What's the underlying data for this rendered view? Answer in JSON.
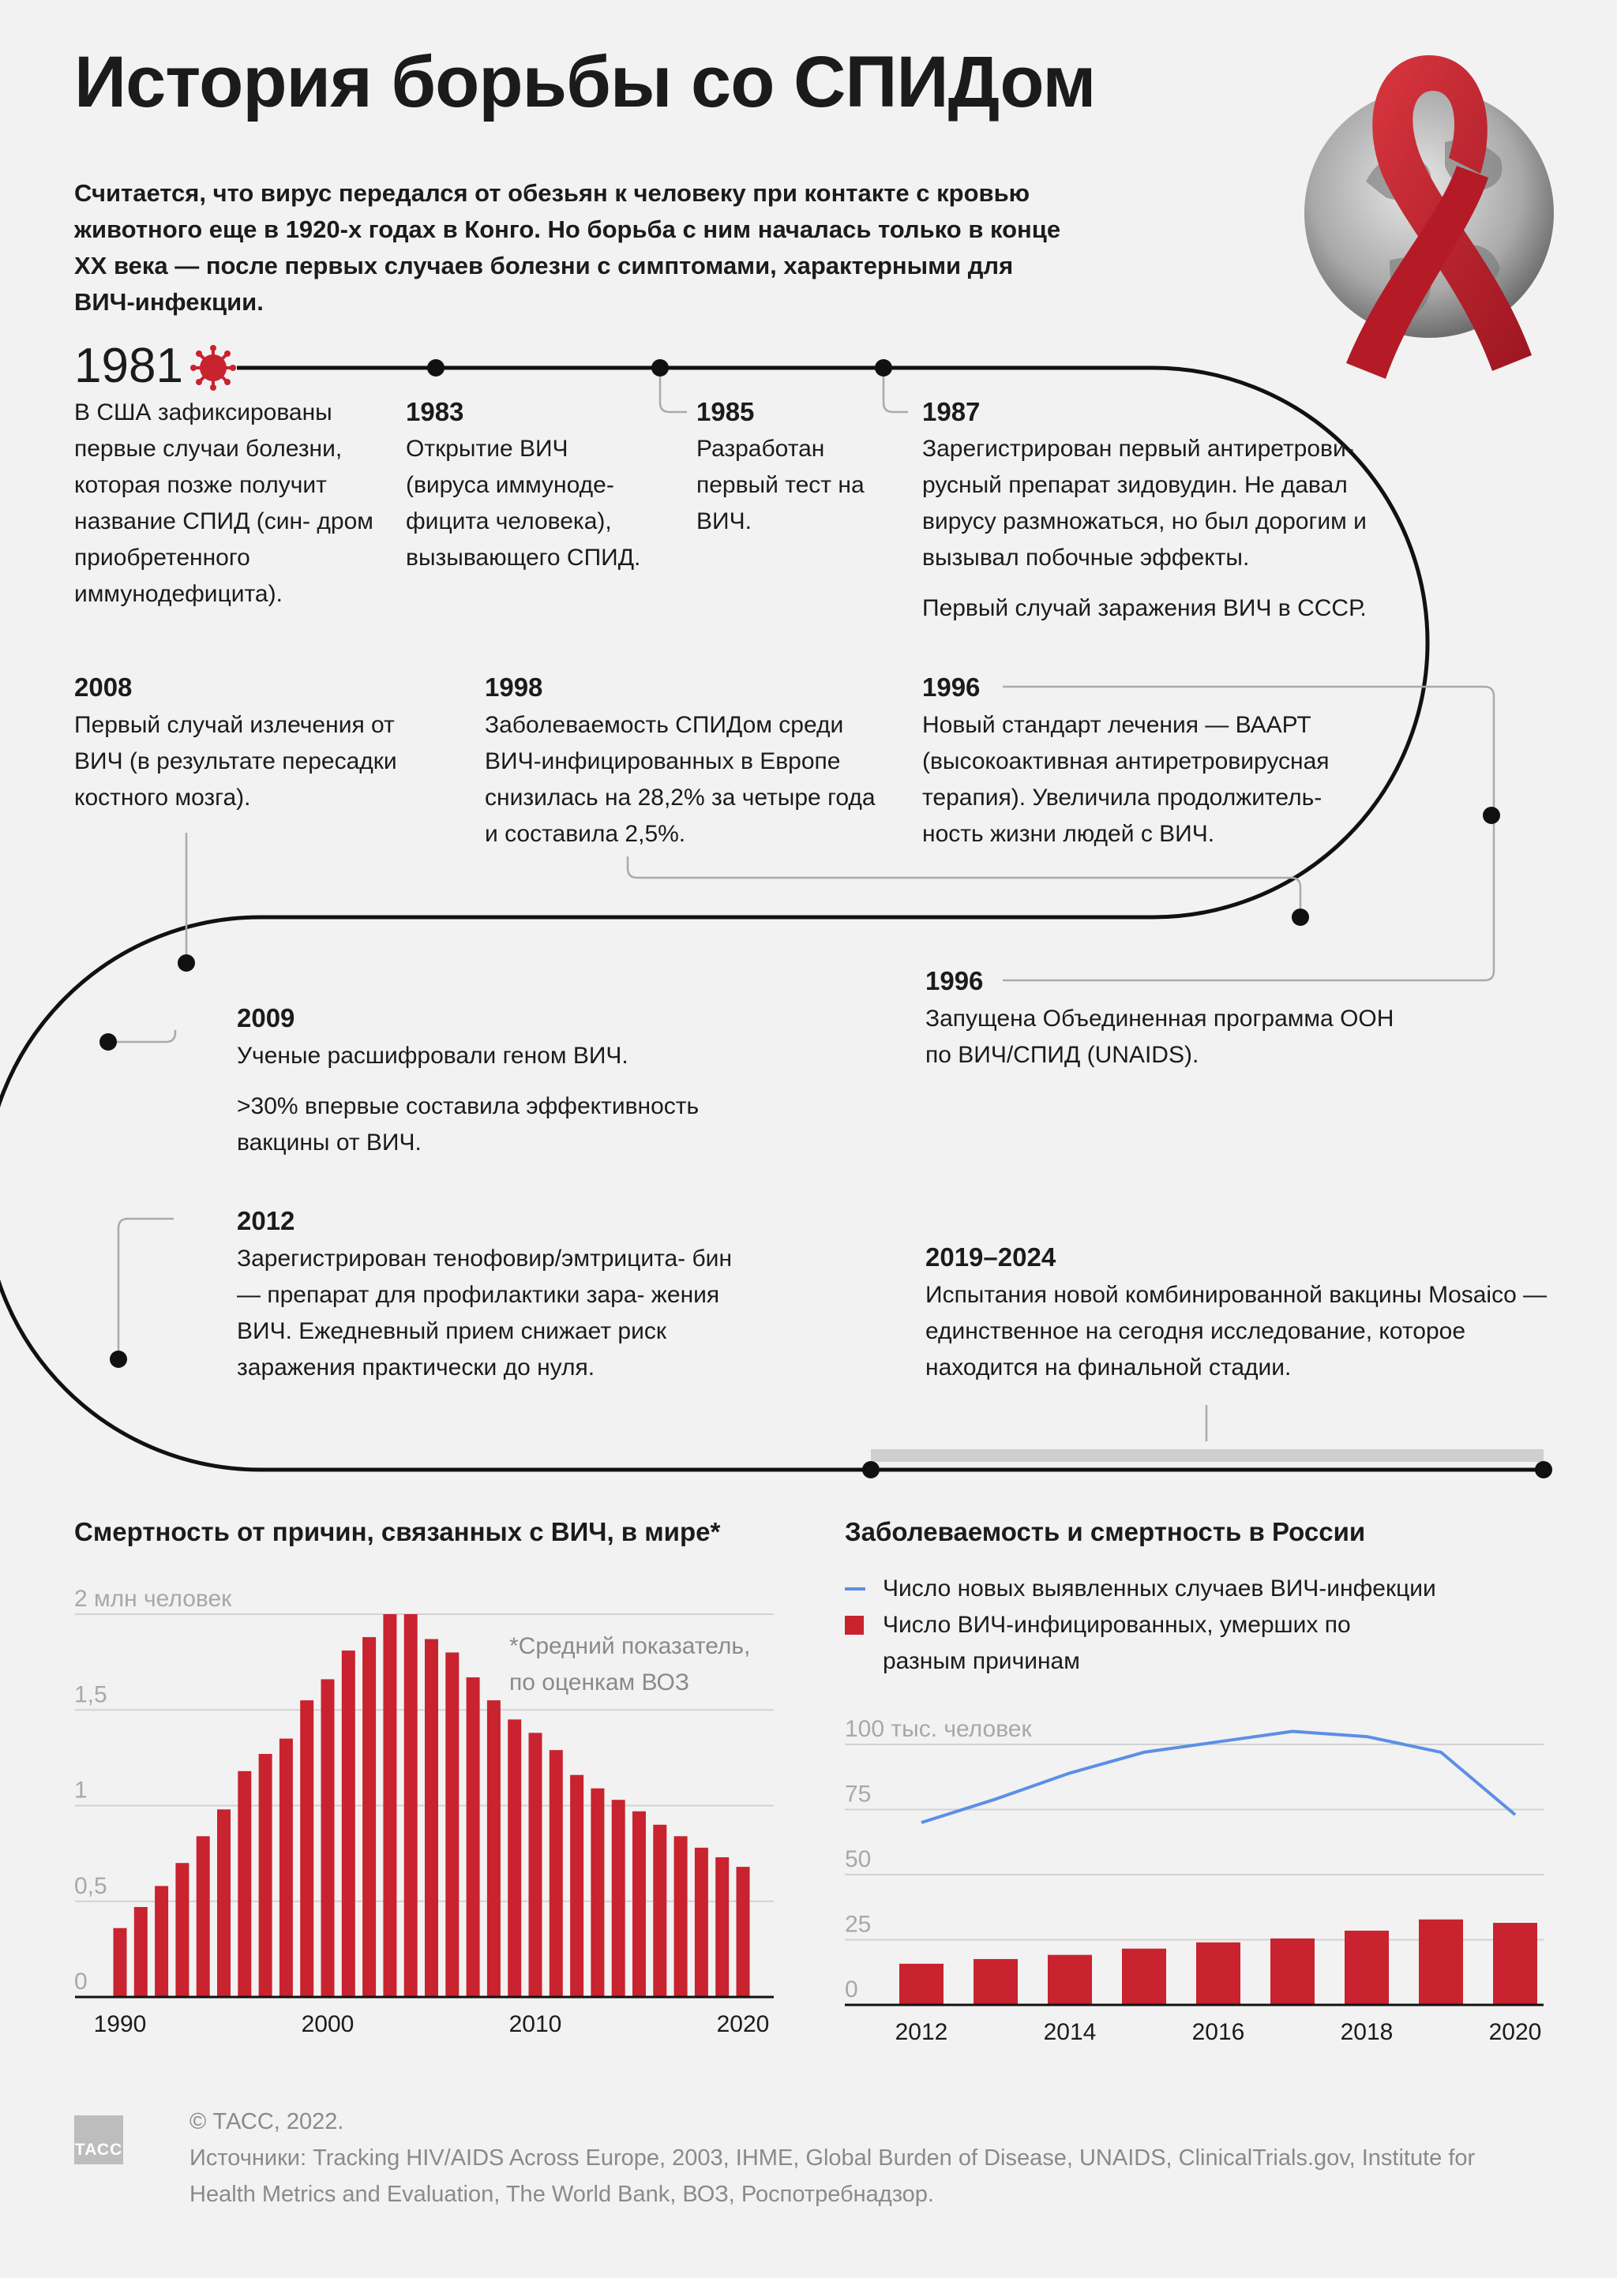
{
  "title": "История борьбы со СПИДом",
  "intro": "Считается, что вирус передался от обезьян к человеку при контакте с кровью животного еще в 1920-х годах в Конго. Но борьба с ним началась только в конце XX века — после первых случаев болезни с симптомами, характерными для ВИЧ-инфекции.",
  "events": [
    {
      "year": "1981",
      "paragraphs": [
        "В США зафиксированы первые случаи болезни, которая позже получит название СПИД (син- дром приобретенного иммунодефицита)."
      ]
    },
    {
      "year": "1983",
      "paragraphs": [
        "Открытие ВИЧ (вируса иммуноде- фицита человека), вызывающего СПИД."
      ]
    },
    {
      "year": "1985",
      "paragraphs": [
        "Разработан первый тест на ВИЧ."
      ]
    },
    {
      "year": "1987",
      "paragraphs": [
        "Зарегистрирован первый антиретрови- русный препарат зидовудин. Не давал вирусу размножаться, но был дорогим и вызывал побочные эффекты.",
        "Первый случай заражения ВИЧ в СССР."
      ]
    },
    {
      "year": "2008",
      "paragraphs": [
        "Первый случай излечения от ВИЧ (в результате пересадки костного мозга)."
      ]
    },
    {
      "year": "1998",
      "paragraphs": [
        "Заболеваемость СПИДом среди ВИЧ-инфицированных в Европе снизилась на 28,2% за четыре года и составила 2,5%."
      ]
    },
    {
      "year": "1996",
      "paragraphs": [
        "Новый стандарт лечения — ВААРТ (высокоактивная антиретровирусная терапия). Увеличила продолжитель- ность жизни людей с ВИЧ."
      ]
    },
    {
      "year": "2009",
      "paragraphs": [
        "Ученые расшифровали геном ВИЧ.",
        ">30% впервые составила эффективность вакцины от ВИЧ."
      ]
    },
    {
      "year": "1996",
      "paragraphs": [
        "Запущена Объединенная программа ООН по ВИЧ/СПИД (UNAIDS)."
      ]
    },
    {
      "year": "2012",
      "paragraphs": [
        "Зарегистрирован тенофовир/эмтрицита- бин — препарат для профилактики зара- жения ВИЧ. Ежедневный прием снижает риск заражения практически до нуля."
      ]
    },
    {
      "year": "2019–2024",
      "paragraphs": [
        "Испытания новой комбинированной вакцины Mosaico — единственное на сегодня исследование, которое находится на финальной стадии."
      ]
    }
  ],
  "chart_data": [
    {
      "type": "bar",
      "title": "Смертность от причин, связанных с ВИЧ, в мире*",
      "unit_label": "2 млн человек",
      "note": "*Средний показатель, по оценкам ВОЗ",
      "ylim": [
        0,
        2.0
      ],
      "yticks": [
        {
          "value": 2.0,
          "label": "2 млн человек"
        },
        {
          "value": 1.5,
          "label": "1,5"
        },
        {
          "value": 1.0,
          "label": "1"
        },
        {
          "value": 0.5,
          "label": "0,5"
        },
        {
          "value": 0,
          "label": "0"
        }
      ],
      "xlabels": [
        "1990",
        "2000",
        "2010",
        "2020"
      ],
      "x": [
        1990,
        1991,
        1992,
        1993,
        1994,
        1995,
        1996,
        1997,
        1998,
        1999,
        2000,
        2001,
        2002,
        2003,
        2004,
        2005,
        2006,
        2007,
        2008,
        2009,
        2010,
        2011,
        2012,
        2013,
        2014,
        2015,
        2016,
        2017,
        2018,
        2019,
        2020
      ],
      "values": [
        0.36,
        0.47,
        0.58,
        0.7,
        0.84,
        0.98,
        1.18,
        1.27,
        1.35,
        1.55,
        1.66,
        1.81,
        1.88,
        2.0,
        2.0,
        1.87,
        1.8,
        1.67,
        1.55,
        1.45,
        1.38,
        1.29,
        1.16,
        1.09,
        1.03,
        0.97,
        0.9,
        0.84,
        0.78,
        0.73,
        0.68
      ],
      "color": "#c8232f",
      "grid": true
    },
    {
      "type": "bar+line",
      "title": "Заболеваемость и смертность в России",
      "unit_label": "100 тыс. человек",
      "ylim": [
        0,
        100
      ],
      "yticks": [
        {
          "value": 100,
          "label": "100 тыс. человек"
        },
        {
          "value": 75,
          "label": "75"
        },
        {
          "value": 50,
          "label": "50"
        },
        {
          "value": 25,
          "label": "25"
        },
        {
          "value": 0,
          "label": "0"
        }
      ],
      "xlabels": [
        "2012",
        "2014",
        "2016",
        "2018",
        "2020"
      ],
      "x": [
        2012,
        2013,
        2014,
        2015,
        2016,
        2017,
        2018,
        2019,
        2020
      ],
      "series": [
        {
          "name": "Число новых выявленных случаев ВИЧ-инфекции",
          "type": "line",
          "color": "#5b8fe6",
          "values": [
            70,
            79,
            89,
            97,
            101,
            105,
            103,
            97,
            73
          ]
        },
        {
          "name": "Число ВИЧ-инфицированных, умерших по разным причинам",
          "type": "bar",
          "color": "#c8232f",
          "values": [
            15.8,
            17.6,
            19.2,
            21.6,
            24.0,
            25.5,
            28.5,
            32.8,
            31.5
          ]
        }
      ],
      "grid": true
    }
  ],
  "footer": {
    "copyright": "© ТАСС, 2022.",
    "sources": "Источники: Tracking HIV/AIDS Across Europe, 2003, IHME, Global Burden of Disease, UNAIDS, ClinicalTrials.gov, Institute for Health Metrics and Evaluation, The World Bank, ВОЗ, Роспотребнадзор.",
    "logo": "ТАСС"
  },
  "colors": {
    "accent": "#c8232f",
    "line": "#5b8fe6",
    "text": "#1b1b1b",
    "muted": "#8a8a8a",
    "background": "#f2f2f2"
  }
}
